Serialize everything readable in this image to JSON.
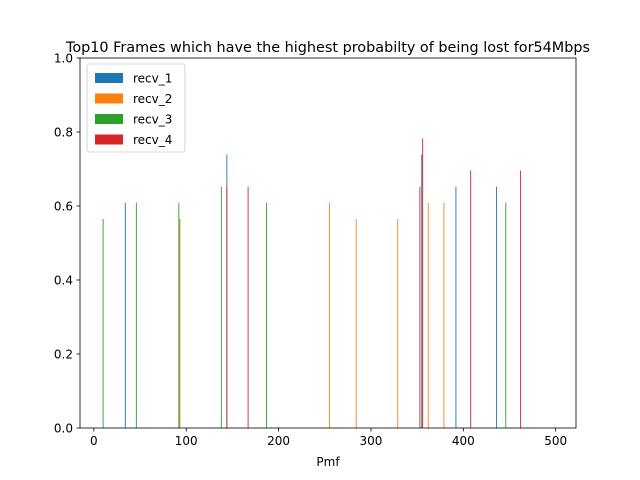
{
  "chart_data": {
    "type": "bar",
    "title": "Top10 Frames which have the highest probabilty of being lost for54Mbps",
    "xlabel": "Pmf",
    "ylabel": "",
    "xlim": [
      -15,
      522
    ],
    "ylim": [
      0,
      1.0
    ],
    "xticks": [
      0,
      100,
      200,
      300,
      400,
      500
    ],
    "yticks": [
      0.0,
      0.2,
      0.4,
      0.6,
      0.8,
      1.0
    ],
    "xtick_labels": [
      "0",
      "100",
      "200",
      "300",
      "400",
      "500"
    ],
    "ytick_labels": [
      "0.0",
      "0.2",
      "0.4",
      "0.6",
      "0.8",
      "1.0"
    ],
    "grid": false,
    "legend_position": "top-left",
    "series": [
      {
        "name": "recv_1",
        "color": "#1f77b4",
        "x": [
          34,
          93,
          144,
          355,
          392,
          436
        ],
        "values": [
          0.609,
          0.565,
          0.739,
          0.739,
          0.652,
          0.652
        ]
      },
      {
        "name": "recv_2",
        "color": "#ff7f0e",
        "x": [
          93,
          255,
          284,
          329,
          362,
          379
        ],
        "values": [
          0.565,
          0.609,
          0.565,
          0.565,
          0.609,
          0.609
        ]
      },
      {
        "name": "recv_3",
        "color": "#2ca02c",
        "x": [
          10,
          46,
          92,
          138,
          187,
          446
        ],
        "values": [
          0.565,
          0.609,
          0.609,
          0.652,
          0.609,
          0.609
        ]
      },
      {
        "name": "recv_4",
        "color": "#d62728",
        "x": [
          144,
          167,
          353,
          356,
          408,
          462
        ],
        "values": [
          0.652,
          0.652,
          0.652,
          0.783,
          0.696,
          0.696
        ]
      }
    ]
  }
}
